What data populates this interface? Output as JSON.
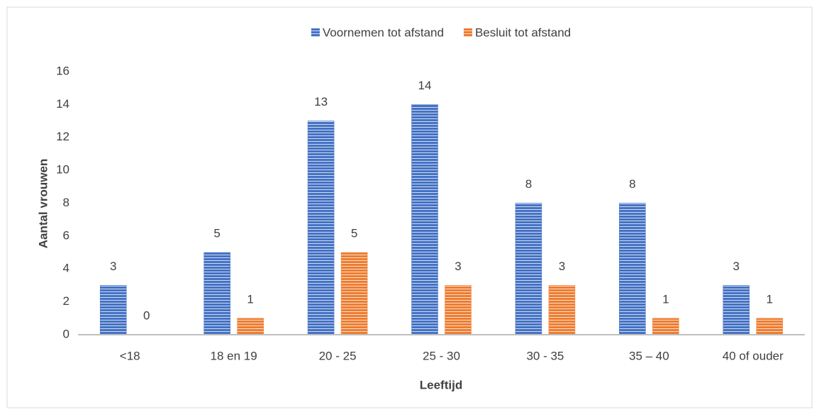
{
  "chart_data": {
    "type": "bar",
    "categories": [
      "<18",
      "18 en 19",
      "20 - 25",
      "25 - 30",
      "30 - 35",
      "35 – 40",
      "40 of ouder"
    ],
    "series": [
      {
        "name": "Voornemen tot afstand",
        "color": "#4472c4",
        "values": [
          3,
          5,
          13,
          14,
          8,
          8,
          3
        ]
      },
      {
        "name": "Besluit tot afstand",
        "color": "#ed7d31",
        "values": [
          0,
          1,
          5,
          3,
          3,
          1,
          1
        ]
      }
    ],
    "ylim": [
      0,
      16
    ],
    "yticks": [
      0,
      2,
      4,
      6,
      8,
      10,
      12,
      14,
      16
    ],
    "ylabel": "Aantal vrouwen",
    "xlabel": "Leeftijd",
    "grid": false,
    "legend": "top"
  }
}
